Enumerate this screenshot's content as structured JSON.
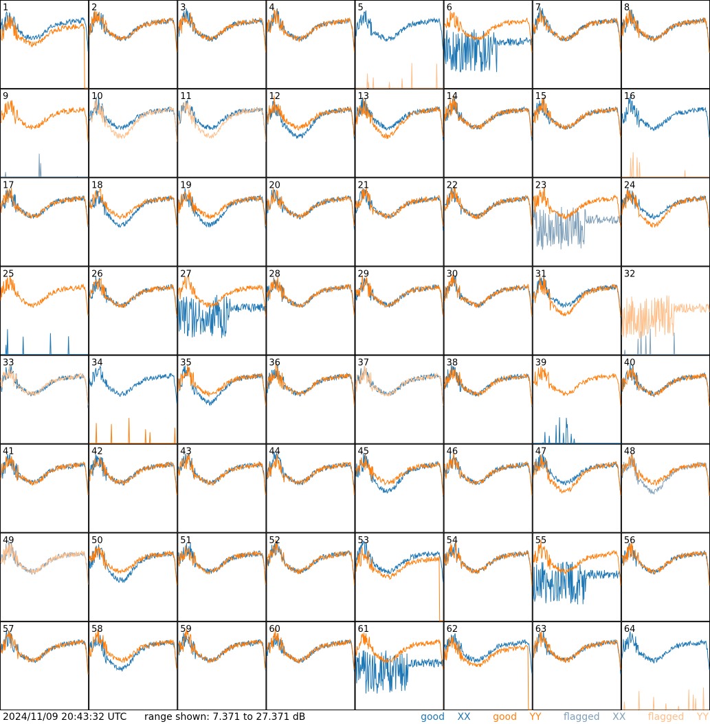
{
  "footer": {
    "timestamp": "2024/11/09 20:43:32 UTC",
    "range": "range shown: 7.371 to 27.371 dB"
  },
  "legend": [
    {
      "label": "good",
      "pol": "XX",
      "color": "#1f77b4"
    },
    {
      "label": "good",
      "pol": "YY",
      "color": "#ff7f0e"
    },
    {
      "label": "flagged",
      "pol": "XX",
      "color": "#7f9fb8"
    },
    {
      "label": "flagged",
      "pol": "YY",
      "color": "#ffbf8a"
    }
  ],
  "chart_data": {
    "type": "line",
    "ylim": [
      7.371,
      27.371
    ],
    "ylabel": "dB",
    "grid": {
      "rows": 8,
      "cols": 8
    },
    "colors": {
      "good_xx": "#1f77b4",
      "good_yy": "#ff7f0e",
      "flagged_xx": "#7f9fb8",
      "flagged_yy": "#ffbf8a"
    },
    "panels": [
      {
        "n": 1,
        "xx": "good",
        "yy": "good",
        "xxShape": "normal",
        "yyShape": "dropout"
      },
      {
        "n": 2,
        "xx": "good",
        "yy": "good",
        "xxShape": "normal",
        "yyShape": "normal"
      },
      {
        "n": 3,
        "xx": "good",
        "yy": "good",
        "xxShape": "normal",
        "yyShape": "normal"
      },
      {
        "n": 4,
        "xx": "good",
        "yy": "good",
        "xxShape": "normal",
        "yyShape": "normal"
      },
      {
        "n": 5,
        "xx": "good",
        "yy": "flagged",
        "xxShape": "normal",
        "yyShape": "dead"
      },
      {
        "n": 6,
        "xx": "good",
        "yy": "good",
        "xxShape": "noisy",
        "yyShape": "normal"
      },
      {
        "n": 7,
        "xx": "good",
        "yy": "good",
        "xxShape": "normal",
        "yyShape": "normal"
      },
      {
        "n": 8,
        "xx": "good",
        "yy": "good",
        "xxShape": "normal",
        "yyShape": "normal"
      },
      {
        "n": 9,
        "xx": "flagged",
        "yy": "good",
        "xxShape": "dead",
        "yyShape": "normal"
      },
      {
        "n": 10,
        "xx": "good",
        "yy": "flagged",
        "xxShape": "normal",
        "yyShape": "low"
      },
      {
        "n": 11,
        "xx": "good",
        "yy": "flagged",
        "xxShape": "normal",
        "yyShape": "low"
      },
      {
        "n": 12,
        "xx": "good",
        "yy": "good",
        "xxShape": "low",
        "yyShape": "normal"
      },
      {
        "n": 13,
        "xx": "good",
        "yy": "good",
        "xxShape": "normal",
        "yyShape": "low"
      },
      {
        "n": 14,
        "xx": "good",
        "yy": "good",
        "xxShape": "normal",
        "yyShape": "normal"
      },
      {
        "n": 15,
        "xx": "good",
        "yy": "good",
        "xxShape": "normal",
        "yyShape": "normal"
      },
      {
        "n": 16,
        "xx": "good",
        "yy": "flagged",
        "xxShape": "normal",
        "yyShape": "dead"
      },
      {
        "n": 17,
        "xx": "good",
        "yy": "good",
        "xxShape": "normal",
        "yyShape": "normal"
      },
      {
        "n": 18,
        "xx": "good",
        "yy": "good",
        "xxShape": "low",
        "yyShape": "normal"
      },
      {
        "n": 19,
        "xx": "good",
        "yy": "good",
        "xxShape": "low",
        "yyShape": "normal"
      },
      {
        "n": 20,
        "xx": "good",
        "yy": "good",
        "xxShape": "normal",
        "yyShape": "normal"
      },
      {
        "n": 21,
        "xx": "good",
        "yy": "good",
        "xxShape": "normal",
        "yyShape": "normal"
      },
      {
        "n": 22,
        "xx": "good",
        "yy": "good",
        "xxShape": "normal",
        "yyShape": "normal"
      },
      {
        "n": 23,
        "xx": "flagged",
        "yy": "good",
        "xxShape": "noisy",
        "yyShape": "normal"
      },
      {
        "n": 24,
        "xx": "good",
        "yy": "good",
        "xxShape": "normal",
        "yyShape": "low"
      },
      {
        "n": 25,
        "xx": "good",
        "yy": "good",
        "xxShape": "dead",
        "yyShape": "normal"
      },
      {
        "n": 26,
        "xx": "good",
        "yy": "good",
        "xxShape": "normal",
        "yyShape": "normal"
      },
      {
        "n": 27,
        "xx": "good",
        "yy": "good",
        "xxShape": "noisy",
        "yyShape": "normal"
      },
      {
        "n": 28,
        "xx": "good",
        "yy": "good",
        "xxShape": "normal",
        "yyShape": "normal"
      },
      {
        "n": 29,
        "xx": "good",
        "yy": "good",
        "xxShape": "normal",
        "yyShape": "normal"
      },
      {
        "n": 30,
        "xx": "good",
        "yy": "good",
        "xxShape": "normal",
        "yyShape": "normal"
      },
      {
        "n": 31,
        "xx": "good",
        "yy": "good",
        "xxShape": "normal",
        "yyShape": "low"
      },
      {
        "n": 32,
        "xx": "flagged",
        "yy": "flagged",
        "xxShape": "dead",
        "yyShape": "noisy"
      },
      {
        "n": 33,
        "xx": "good",
        "yy": "flagged",
        "xxShape": "normal",
        "yyShape": "normal"
      },
      {
        "n": 34,
        "xx": "good",
        "yy": "good",
        "xxShape": "normal",
        "yyShape": "dead"
      },
      {
        "n": 35,
        "xx": "good",
        "yy": "good",
        "xxShape": "low",
        "yyShape": "normal"
      },
      {
        "n": 36,
        "xx": "good",
        "yy": "good",
        "xxShape": "normal",
        "yyShape": "normal"
      },
      {
        "n": 37,
        "xx": "good",
        "yy": "flagged",
        "xxShape": "normal",
        "yyShape": "normal"
      },
      {
        "n": 38,
        "xx": "good",
        "yy": "good",
        "xxShape": "normal",
        "yyShape": "normal"
      },
      {
        "n": 39,
        "xx": "good",
        "yy": "good",
        "xxShape": "dead",
        "yyShape": "normal"
      },
      {
        "n": 40,
        "xx": "good",
        "yy": "good",
        "xxShape": "normal",
        "yyShape": "normal"
      },
      {
        "n": 41,
        "xx": "good",
        "yy": "good",
        "xxShape": "normal",
        "yyShape": "normal"
      },
      {
        "n": 42,
        "xx": "good",
        "yy": "good",
        "xxShape": "normal",
        "yyShape": "normal"
      },
      {
        "n": 43,
        "xx": "good",
        "yy": "good",
        "xxShape": "normal",
        "yyShape": "normal"
      },
      {
        "n": 44,
        "xx": "good",
        "yy": "good",
        "xxShape": "normal",
        "yyShape": "normal"
      },
      {
        "n": 45,
        "xx": "good",
        "yy": "good",
        "xxShape": "low",
        "yyShape": "normal"
      },
      {
        "n": 46,
        "xx": "good",
        "yy": "good",
        "xxShape": "normal",
        "yyShape": "normal"
      },
      {
        "n": 47,
        "xx": "good",
        "yy": "good",
        "xxShape": "normal",
        "yyShape": "low"
      },
      {
        "n": 48,
        "xx": "flagged",
        "yy": "good",
        "xxShape": "low",
        "yyShape": "normal"
      },
      {
        "n": 49,
        "xx": "flagged",
        "yy": "flagged",
        "xxShape": "normal",
        "yyShape": "normal"
      },
      {
        "n": 50,
        "xx": "good",
        "yy": "good",
        "xxShape": "low",
        "yyShape": "normal"
      },
      {
        "n": 51,
        "xx": "good",
        "yy": "good",
        "xxShape": "normal",
        "yyShape": "normal"
      },
      {
        "n": 52,
        "xx": "good",
        "yy": "good",
        "xxShape": "normal",
        "yyShape": "normal"
      },
      {
        "n": 53,
        "xx": "good",
        "yy": "good",
        "xxShape": "normal",
        "yyShape": "dropout"
      },
      {
        "n": 54,
        "xx": "good",
        "yy": "good",
        "xxShape": "normal",
        "yyShape": "normal"
      },
      {
        "n": 55,
        "xx": "good",
        "yy": "good",
        "xxShape": "noisy",
        "yyShape": "normal"
      },
      {
        "n": 56,
        "xx": "good",
        "yy": "good",
        "xxShape": "normal",
        "yyShape": "normal"
      },
      {
        "n": 57,
        "xx": "good",
        "yy": "good",
        "xxShape": "normal",
        "yyShape": "normal"
      },
      {
        "n": 58,
        "xx": "good",
        "yy": "good",
        "xxShape": "low",
        "yyShape": "normal"
      },
      {
        "n": 59,
        "xx": "good",
        "yy": "good",
        "xxShape": "normal",
        "yyShape": "normal"
      },
      {
        "n": 60,
        "xx": "good",
        "yy": "good",
        "xxShape": "normal",
        "yyShape": "normal"
      },
      {
        "n": 61,
        "xx": "good",
        "yy": "good",
        "xxShape": "noisy",
        "yyShape": "normal"
      },
      {
        "n": 62,
        "xx": "good",
        "yy": "good",
        "xxShape": "normal",
        "yyShape": "dropout"
      },
      {
        "n": 63,
        "xx": "good",
        "yy": "good",
        "xxShape": "normal",
        "yyShape": "normal"
      },
      {
        "n": 64,
        "xx": "good",
        "yy": "flagged",
        "xxShape": "normal",
        "yyShape": "dead"
      }
    ]
  }
}
